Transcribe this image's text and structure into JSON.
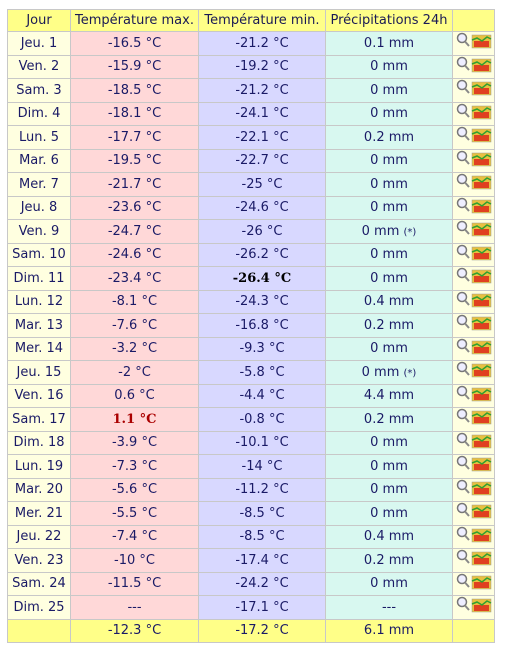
{
  "table": {
    "header": [
      "Jour",
      "Température max.",
      "Température min.",
      "Précipitations 24h"
    ],
    "rows": [
      {
        "day": "Jeu. 1",
        "max": "-16.5 °C",
        "min": "-21.2 °C",
        "precip": "0.1 mm"
      },
      {
        "day": "Ven. 2",
        "max": "-15.9 °C",
        "min": "-19.2 °C",
        "precip": "0 mm"
      },
      {
        "day": "Sam. 3",
        "max": "-18.5 °C",
        "min": "-21.2 °C",
        "precip": "0 mm"
      },
      {
        "day": "Dim. 4",
        "max": "-18.1 °C",
        "min": "-24.1 °C",
        "precip": "0 mm"
      },
      {
        "day": "Lun. 5",
        "max": "-17.7 °C",
        "min": "-22.1 °C",
        "precip": "0.2 mm"
      },
      {
        "day": "Mar. 6",
        "max": "-19.5 °C",
        "min": "-22.7 °C",
        "precip": "0 mm"
      },
      {
        "day": "Mer. 7",
        "max": "-21.7 °C",
        "min": "-25 °C",
        "precip": "0 mm"
      },
      {
        "day": "Jeu. 8",
        "max": "-23.6 °C",
        "min": "-24.6 °C",
        "precip": "0 mm"
      },
      {
        "day": "Ven. 9",
        "max": "-24.7 °C",
        "min": "-26 °C",
        "precip": "0 mm",
        "note": "(*)"
      },
      {
        "day": "Sam. 10",
        "max": "-24.6 °C",
        "min": "-26.2 °C",
        "precip": "0 mm"
      },
      {
        "day": "Dim. 11",
        "max": "-23.4 °C",
        "min": "-26.4 °C",
        "precip": "0 mm"
      },
      {
        "day": "Lun. 12",
        "max": "-8.1 °C",
        "min": "-24.3 °C",
        "precip": "0.4 mm"
      },
      {
        "day": "Mar. 13",
        "max": "-7.6 °C",
        "min": "-16.8 °C",
        "precip": "0.2 mm"
      },
      {
        "day": "Mer. 14",
        "max": "-3.2 °C",
        "min": "-9.3 °C",
        "precip": "0 mm"
      },
      {
        "day": "Jeu. 15",
        "max": "-2 °C",
        "min": "-5.8 °C",
        "precip": "0 mm",
        "note": "(*)"
      },
      {
        "day": "Ven. 16",
        "max": "0.6 °C",
        "min": "-4.4 °C",
        "precip": "4.4 mm"
      },
      {
        "day": "Sam. 17",
        "max": "1.1 °C",
        "min": "-0.8 °C",
        "precip": "0.2 mm"
      },
      {
        "day": "Dim. 18",
        "max": "-3.9 °C",
        "min": "-10.1 °C",
        "precip": "0 mm"
      },
      {
        "day": "Lun. 19",
        "max": "-7.3 °C",
        "min": "-14 °C",
        "precip": "0 mm"
      },
      {
        "day": "Mar. 20",
        "max": "-5.6 °C",
        "min": "-11.2 °C",
        "precip": "0 mm"
      },
      {
        "day": "Mer. 21",
        "max": "-5.5 °C",
        "min": "-8.5 °C",
        "precip": "0 mm"
      },
      {
        "day": "Jeu. 22",
        "max": "-7.4 °C",
        "min": "-8.5 °C",
        "precip": "0.4 mm"
      },
      {
        "day": "Ven. 23",
        "max": "-10 °C",
        "min": "-17.4 °C",
        "precip": "0.2 mm"
      },
      {
        "day": "Sam. 24",
        "max": "-11.5 °C",
        "min": "-24.2 °C",
        "precip": "0 mm"
      },
      {
        "day": "Dim. 25",
        "max": "---",
        "min": "-17.1 °C",
        "precip": "---"
      }
    ],
    "footer": {
      "max": "-12.3 °C",
      "min": "-17.2 °C",
      "precip": "6.1 mm"
    }
  }
}
